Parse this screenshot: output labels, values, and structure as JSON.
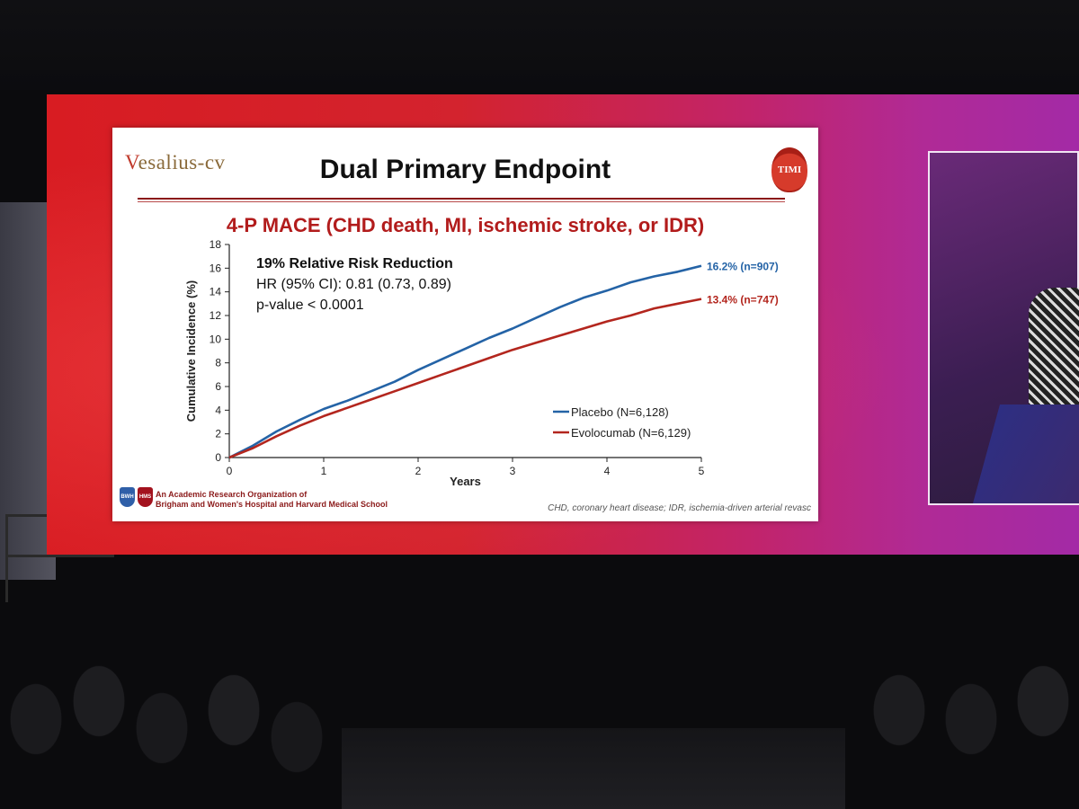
{
  "slide": {
    "logo_text": "esalius-cv",
    "logo_initial": "V",
    "title": "Dual Primary Endpoint",
    "badge_text": "TIMI",
    "subtitle": "4-P MACE (CHD death, MI, ischemic stroke, or IDR)",
    "footer_org_line1": "An Academic Research Organization of",
    "footer_org_line2": "Brigham and Women's Hospital and Harvard Medical School",
    "footnote": "CHD, coronary heart disease; IDR, ischemia-driven arterial revasc",
    "footer_logo_1": "BWH",
    "footer_logo_2": "HMS"
  },
  "colors": {
    "placebo": "#2463a6",
    "evolocumab": "#b3261e",
    "title_accent": "#b21c1c"
  },
  "chart_data": {
    "type": "line",
    "title": "",
    "xlabel": "Years",
    "ylabel": "Cumulative Incidence (%)",
    "xlim": [
      0,
      5
    ],
    "ylim": [
      0,
      18
    ],
    "x_ticks": [
      "0",
      "1",
      "2",
      "3",
      "4",
      "5"
    ],
    "y_ticks": [
      "0",
      "2",
      "4",
      "6",
      "8",
      "10",
      "12",
      "14",
      "16",
      "18"
    ],
    "grid": false,
    "legend_position": "bottom-right",
    "x": [
      0,
      0.25,
      0.5,
      0.75,
      1,
      1.25,
      1.5,
      1.75,
      2,
      2.25,
      2.5,
      2.75,
      3,
      3.25,
      3.5,
      3.75,
      4,
      4.25,
      4.5,
      4.75,
      5
    ],
    "series": [
      {
        "name": "Placebo (N=6,128)",
        "end_label": "16.2% (n=907)",
        "values": [
          0,
          1.0,
          2.2,
          3.2,
          4.1,
          4.8,
          5.6,
          6.4,
          7.4,
          8.3,
          9.2,
          10.1,
          10.9,
          11.8,
          12.7,
          13.5,
          14.1,
          14.8,
          15.3,
          15.7,
          16.2
        ]
      },
      {
        "name": "Evolocumab (N=6,129)",
        "end_label": "13.4% (n=747)",
        "values": [
          0,
          0.8,
          1.8,
          2.7,
          3.5,
          4.2,
          4.9,
          5.6,
          6.3,
          7.0,
          7.7,
          8.4,
          9.1,
          9.7,
          10.3,
          10.9,
          11.5,
          12.0,
          12.6,
          13.0,
          13.4
        ]
      }
    ],
    "annotations": [
      "19% Relative Risk Reduction",
      "HR (95% CI): 0.81 (0.73, 0.89)",
      "p-value < 0.0001"
    ]
  }
}
